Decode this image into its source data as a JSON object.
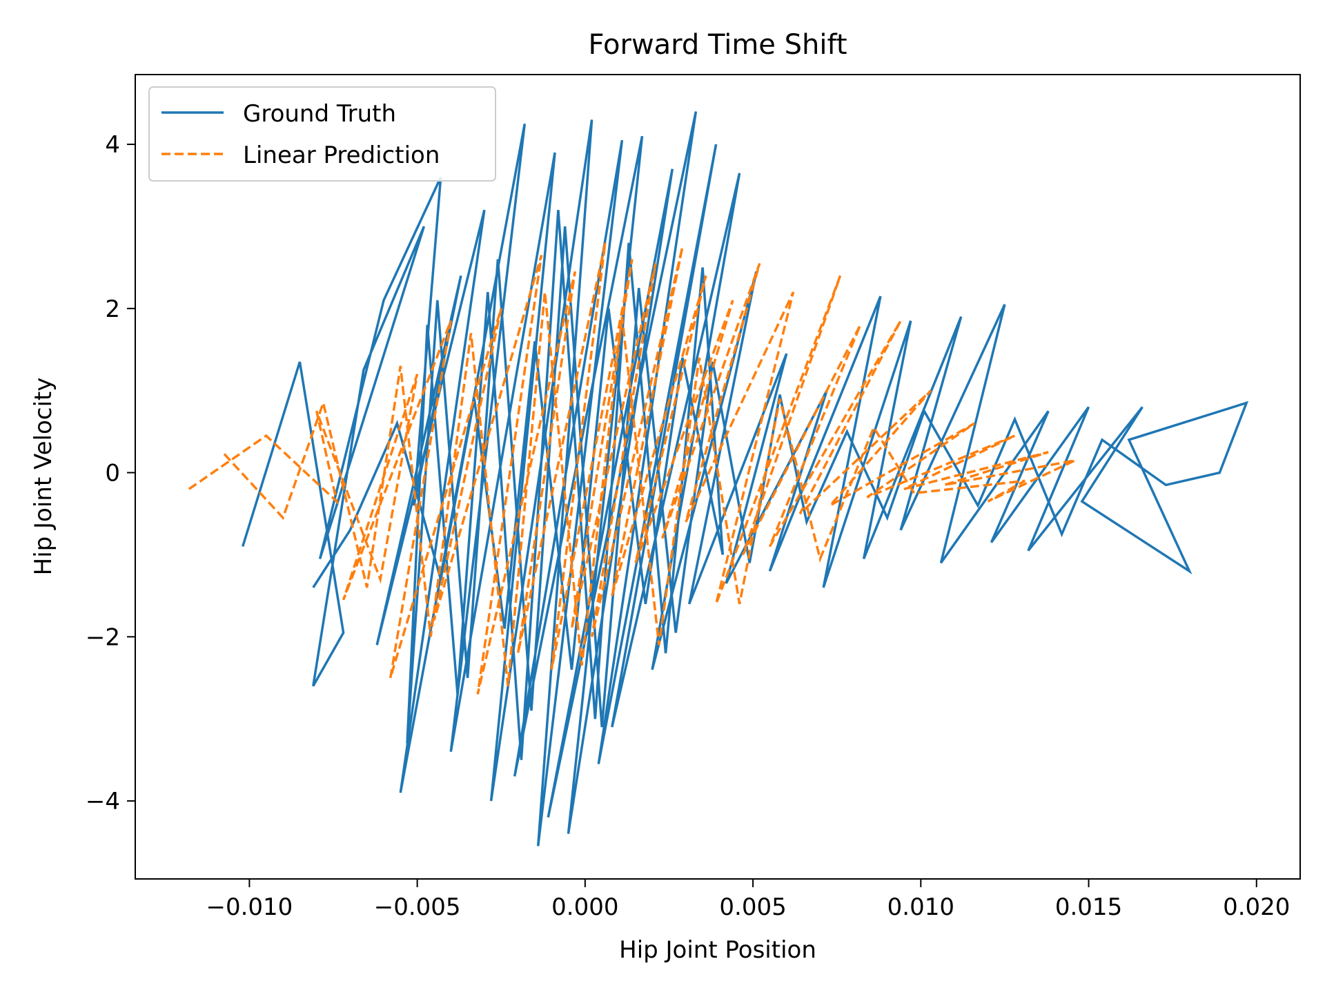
{
  "chart_data": {
    "type": "line",
    "title": "Forward Time Shift",
    "xlabel": "Hip Joint Position",
    "ylabel": "Hip Joint Velocity",
    "xlim": [
      -0.0134,
      0.0213
    ],
    "ylim": [
      -4.95,
      4.85
    ],
    "xticks": [
      -0.01,
      -0.005,
      0.0,
      0.005,
      0.01,
      0.015,
      0.02
    ],
    "xtick_labels": [
      "−0.010",
      "−0.005",
      "0.000",
      "0.005",
      "0.010",
      "0.015",
      "0.020"
    ],
    "yticks": [
      -4,
      -2,
      0,
      2,
      4
    ],
    "ytick_labels": [
      "−4",
      "−2",
      "0",
      "2",
      "4"
    ],
    "grid": false,
    "legend_position": "top-left",
    "series": [
      {
        "name": "Ground Truth",
        "color": "#1f77b4",
        "style": "solid",
        "x": [
          -0.0102,
          -0.0085,
          -0.0072,
          -0.0081,
          -0.0066,
          -0.0048,
          -0.0079,
          -0.006,
          -0.0043,
          -0.0051,
          -0.0037,
          -0.0062,
          -0.003,
          -0.0055,
          -0.0018,
          -0.004,
          -0.0009,
          -0.0028,
          0.0002,
          -0.0014,
          0.0011,
          -0.0021,
          0.0017,
          -0.0005,
          0.0026,
          -0.0011,
          0.0033,
          0.0004,
          0.0039,
          0.0008,
          0.0046,
          0.002,
          0.0051,
          0.0031,
          0.006,
          0.0042,
          0.0072,
          0.0055,
          0.0088,
          0.0071,
          0.0097,
          0.0083,
          0.0112,
          0.0094,
          0.0125,
          0.0106,
          0.0138,
          0.0121,
          0.015,
          0.0132,
          0.0166,
          0.0148,
          0.018,
          0.0162,
          0.0197,
          0.0189,
          0.0173,
          0.0154,
          0.0142,
          0.0128,
          0.0117,
          0.0101,
          0.009,
          0.0078,
          0.0066,
          0.0058,
          0.0049,
          0.0038,
          0.0027,
          0.0016,
          0.0005,
          -0.0006,
          -0.0016,
          -0.0026,
          -0.0035,
          -0.0044,
          -0.0053,
          -0.0047,
          -0.0038,
          -0.0029,
          -0.0019,
          -0.0008,
          0.0003,
          0.0013,
          0.0024,
          0.0035,
          0.0041,
          0.0029,
          0.0018,
          0.0007,
          -0.0004,
          -0.0015,
          -0.0024,
          -0.0033,
          -0.0043,
          -0.0056,
          -0.007,
          -0.0081
        ],
        "y": [
          -0.9,
          1.35,
          -1.95,
          -2.6,
          1.25,
          3.0,
          -1.05,
          2.1,
          3.6,
          -0.4,
          2.4,
          -2.1,
          3.2,
          -3.9,
          4.25,
          -3.4,
          3.9,
          -4.0,
          4.3,
          -4.55,
          4.05,
          -3.7,
          4.1,
          -4.4,
          3.7,
          -4.2,
          4.4,
          -3.55,
          4.0,
          -3.1,
          3.65,
          -2.4,
          2.45,
          -1.6,
          1.45,
          -1.35,
          1.0,
          -1.2,
          2.15,
          -1.4,
          1.85,
          -1.05,
          1.9,
          -0.7,
          2.05,
          -1.1,
          0.75,
          -0.85,
          0.8,
          -0.95,
          0.8,
          -0.35,
          -1.2,
          0.4,
          0.85,
          0.0,
          -0.15,
          0.4,
          -0.75,
          0.65,
          -0.4,
          0.75,
          -0.55,
          0.5,
          -0.6,
          0.95,
          -1.1,
          1.35,
          -1.95,
          2.25,
          -3.1,
          3.0,
          -2.9,
          2.6,
          -2.5,
          2.1,
          -3.3,
          1.8,
          -2.7,
          2.2,
          -3.5,
          3.2,
          -3.0,
          2.8,
          -2.2,
          2.5,
          -1.0,
          1.4,
          -1.6,
          2.0,
          -2.4,
          1.6,
          -1.9,
          0.9,
          -1.3,
          0.6,
          -0.7,
          -1.4
        ]
      },
      {
        "name": "Linear Prediction",
        "color": "#ff7f0e",
        "style": "dashed",
        "x": [
          -0.0118,
          -0.0095,
          -0.0074,
          -0.008,
          -0.0061,
          -0.005,
          -0.0072,
          -0.004,
          -0.0058,
          -0.0025,
          -0.0045,
          -0.0013,
          -0.0032,
          -0.0003,
          -0.002,
          0.0006,
          -0.001,
          0.0014,
          -0.0004,
          0.0021,
          0.0002,
          0.0029,
          0.0008,
          0.0036,
          0.0015,
          0.0044,
          0.0023,
          0.0052,
          0.003,
          0.0062,
          0.0039,
          0.0076,
          0.0047,
          0.0082,
          0.0055,
          0.0094,
          0.0064,
          0.0103,
          0.0073,
          0.0116,
          0.0084,
          0.0128,
          0.0095,
          0.0138,
          0.0107,
          0.0146,
          0.012,
          0.0131,
          0.0098,
          0.0086,
          0.007,
          0.0058,
          0.0046,
          0.0034,
          0.0022,
          0.0011,
          -0.0001,
          -0.0012,
          -0.0023,
          -0.0034,
          -0.0046,
          -0.0055,
          -0.0065,
          -0.0078,
          -0.009,
          -0.0108
        ],
        "y": [
          -0.2,
          0.45,
          -0.35,
          0.75,
          -1.3,
          1.2,
          -1.55,
          1.85,
          -2.5,
          2.0,
          -1.8,
          2.65,
          -2.7,
          2.45,
          -2.2,
          2.8,
          -2.4,
          2.6,
          -1.9,
          2.55,
          -2.0,
          2.75,
          -1.5,
          2.4,
          -1.1,
          2.1,
          -0.8,
          2.55,
          -0.6,
          2.2,
          -1.6,
          2.4,
          -1.0,
          1.8,
          -0.9,
          1.85,
          -0.5,
          1.0,
          -0.4,
          0.6,
          -0.3,
          0.45,
          -0.2,
          0.25,
          -0.15,
          0.15,
          -0.35,
          -0.1,
          -0.25,
          0.55,
          -1.05,
          0.9,
          -1.6,
          1.4,
          -2.1,
          1.9,
          -2.35,
          2.2,
          -2.6,
          1.7,
          -2.0,
          1.3,
          -1.4,
          0.85,
          -0.55,
          0.25
        ]
      }
    ]
  }
}
